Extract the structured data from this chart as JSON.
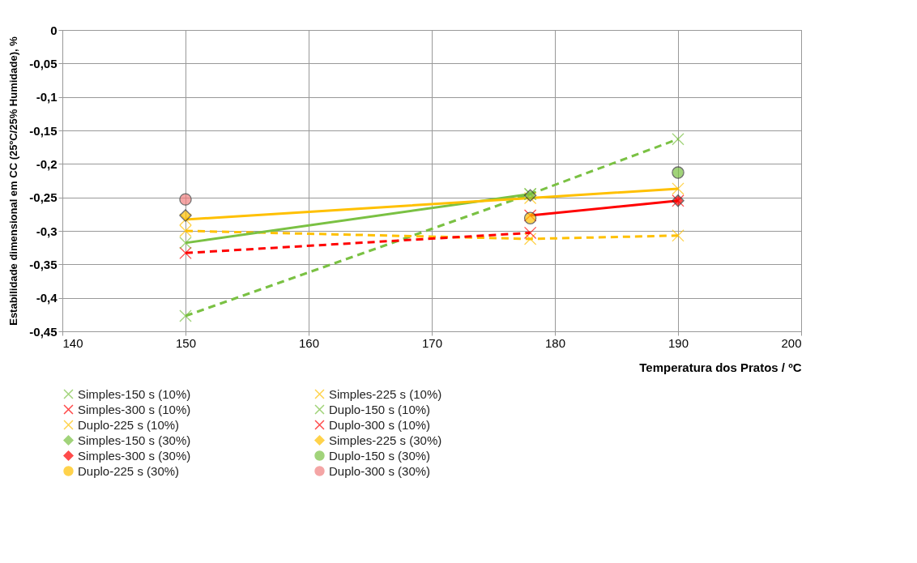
{
  "chart_data": {
    "type": "line",
    "xlabel": "Temperatura dos Pratos / ºC",
    "ylabel": "Estabilidade dimensional em CC (25ºC/25% Humidade), %",
    "x": [
      150,
      178,
      190
    ],
    "series": [
      {
        "name": "Simples-150 s (10%)",
        "color": "#7ac143",
        "marker": "cross",
        "line_style": "dashed",
        "values": [
          -0.427,
          -0.245,
          -0.163
        ]
      },
      {
        "name": "Simples-225 s (10%)",
        "color": "#ffc000",
        "marker": "cross",
        "line_style": "dashed",
        "values": [
          -0.3,
          -0.312,
          -0.307
        ]
      },
      {
        "name": "Simples-300 s (10%)",
        "color": "#ff0000",
        "marker": "cross",
        "line_style": "dashed",
        "values": [
          -0.333,
          -0.303,
          null
        ]
      },
      {
        "name": "Duplo-150 s (10%)",
        "color": "#7ac143",
        "marker": "cross",
        "line_style": "solid",
        "values": [
          -0.318,
          -0.245,
          null
        ]
      },
      {
        "name": "Duplo-225 s (10%)",
        "color": "#ffc000",
        "marker": "cross",
        "line_style": "solid",
        "values": [
          -0.283,
          -0.251,
          -0.237
        ]
      },
      {
        "name": "Duplo-300 s (10%)",
        "color": "#ff0000",
        "marker": "cross",
        "line_style": "solid",
        "values": [
          null,
          -0.277,
          -0.255
        ]
      },
      {
        "name": "Simples-150 s (30%)",
        "color": "#7ac143",
        "type": "scatter",
        "marker": "diamond",
        "values": [
          null,
          -0.247,
          null
        ]
      },
      {
        "name": "Simples-225 s (30%)",
        "color": "#ffc000",
        "type": "scatter",
        "marker": "diamond",
        "values": [
          -0.277,
          null,
          null
        ]
      },
      {
        "name": "Simples-300 s (30%)",
        "color": "#ff0000",
        "type": "scatter",
        "marker": "diamond",
        "values": [
          null,
          null,
          -0.255
        ]
      },
      {
        "name": "Duplo-150 s (30%)",
        "color": "#7ac143",
        "type": "scatter",
        "marker": "circle",
        "values": [
          null,
          null,
          -0.213
        ]
      },
      {
        "name": "Duplo-225 s (30%)",
        "color": "#ffc000",
        "type": "scatter",
        "marker": "circle",
        "values": [
          null,
          -0.281,
          null
        ]
      },
      {
        "name": "Duplo-300 s (30%)",
        "color": "#f08080",
        "type": "scatter",
        "marker": "circle",
        "values": [
          -0.253,
          null,
          null
        ]
      }
    ],
    "xlim": [
      140,
      200
    ],
    "xticks": [
      140,
      150,
      160,
      170,
      180,
      190,
      200
    ],
    "ylim": [
      -0.45,
      0
    ],
    "yticks": [
      {
        "value": 0,
        "label": "0"
      },
      {
        "value": -0.05,
        "label": "-0,05"
      },
      {
        "value": -0.1,
        "label": "-0,1"
      },
      {
        "value": -0.15,
        "label": "-0,15"
      },
      {
        "value": -0.2,
        "label": "-0,2"
      },
      {
        "value": -0.25,
        "label": "-0,25"
      },
      {
        "value": -0.3,
        "label": "-0,3"
      },
      {
        "value": -0.35,
        "label": "-0,35"
      },
      {
        "value": -0.4,
        "label": "-0,4"
      },
      {
        "value": -0.45,
        "label": "-0,45"
      }
    ],
    "grid": true,
    "legend": "bottom"
  }
}
